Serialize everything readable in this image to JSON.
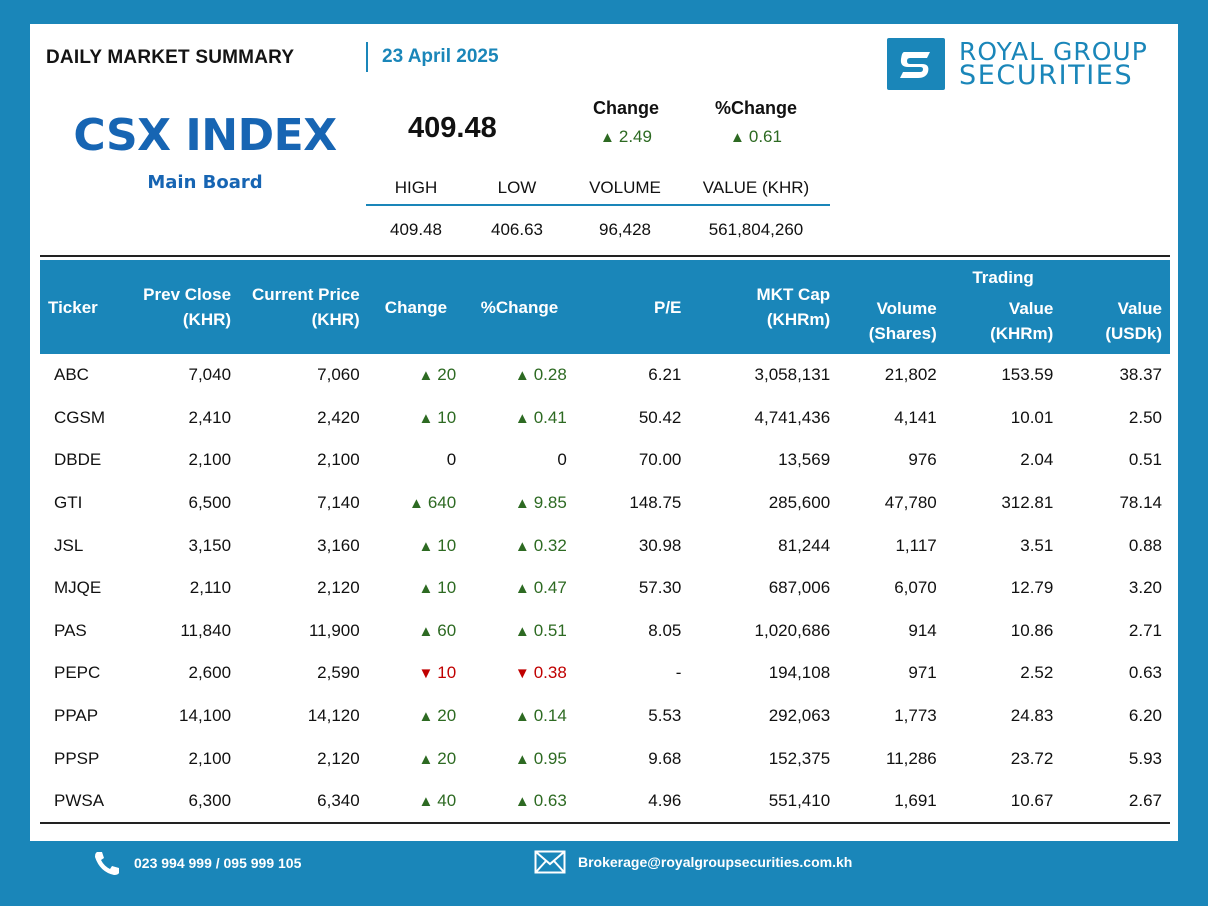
{
  "header": {
    "title": "DAILY MARKET SUMMARY",
    "date": "23 April 2025",
    "logo_line1": "ROYAL GROUP",
    "logo_line2": "SECURITIES"
  },
  "index": {
    "name": "CSX INDEX",
    "board": "Main Board",
    "value": "409.48",
    "change_label": "Change",
    "change_value": "2.49",
    "pct_change_label": "%Change",
    "pct_change_value": "0.61",
    "stats_labels": [
      "HIGH",
      "LOW",
      "VOLUME",
      "VALUE (KHR)"
    ],
    "stats_values": [
      "409.48",
      "406.63",
      "96,428",
      "561,804,260"
    ]
  },
  "table": {
    "headers": {
      "ticker": "Ticker",
      "prev_close": "Prev Close",
      "prev_close_unit": "(KHR)",
      "current_price": "Current Price",
      "current_price_unit": "(KHR)",
      "change": "Change",
      "pct_change": "%Change",
      "pe": "P/E",
      "mkt_cap": "MKT Cap",
      "mkt_cap_unit": "(KHRm)",
      "volume": "Volume",
      "volume_unit": "(Shares)",
      "trading": "Trading",
      "value_khr": "Value",
      "value_khr_unit": "(KHRm)",
      "value_usd": "Value",
      "value_usd_unit": "(USDk)"
    },
    "rows": [
      {
        "ticker": "ABC",
        "prev": "7,040",
        "curr": "7,060",
        "dir": "up",
        "chg": "20",
        "pct": "0.28",
        "pe": "6.21",
        "cap": "3,058,131",
        "vol": "21,802",
        "vkhr": "153.59",
        "vusd": "38.37"
      },
      {
        "ticker": "CGSM",
        "prev": "2,410",
        "curr": "2,420",
        "dir": "up",
        "chg": "10",
        "pct": "0.41",
        "pe": "50.42",
        "cap": "4,741,436",
        "vol": "4,141",
        "vkhr": "10.01",
        "vusd": "2.50"
      },
      {
        "ticker": "DBDE",
        "prev": "2,100",
        "curr": "2,100",
        "dir": "flat",
        "chg": "0",
        "pct": "0",
        "pe": "70.00",
        "cap": "13,569",
        "vol": "976",
        "vkhr": "2.04",
        "vusd": "0.51"
      },
      {
        "ticker": "GTI",
        "prev": "6,500",
        "curr": "7,140",
        "dir": "up",
        "chg": "640",
        "pct": "9.85",
        "pe": "148.75",
        "cap": "285,600",
        "vol": "47,780",
        "vkhr": "312.81",
        "vusd": "78.14"
      },
      {
        "ticker": "JSL",
        "prev": "3,150",
        "curr": "3,160",
        "dir": "up",
        "chg": "10",
        "pct": "0.32",
        "pe": "30.98",
        "cap": "81,244",
        "vol": "1,117",
        "vkhr": "3.51",
        "vusd": "0.88"
      },
      {
        "ticker": "MJQE",
        "prev": "2,110",
        "curr": "2,120",
        "dir": "up",
        "chg": "10",
        "pct": "0.47",
        "pe": "57.30",
        "cap": "687,006",
        "vol": "6,070",
        "vkhr": "12.79",
        "vusd": "3.20"
      },
      {
        "ticker": "PAS",
        "prev": "11,840",
        "curr": "11,900",
        "dir": "up",
        "chg": "60",
        "pct": "0.51",
        "pe": "8.05",
        "cap": "1,020,686",
        "vol": "914",
        "vkhr": "10.86",
        "vusd": "2.71"
      },
      {
        "ticker": "PEPC",
        "prev": "2,600",
        "curr": "2,590",
        "dir": "down",
        "chg": "10",
        "pct": "0.38",
        "pe": "-",
        "cap": "194,108",
        "vol": "971",
        "vkhr": "2.52",
        "vusd": "0.63"
      },
      {
        "ticker": "PPAP",
        "prev": "14,100",
        "curr": "14,120",
        "dir": "up",
        "chg": "20",
        "pct": "0.14",
        "pe": "5.53",
        "cap": "292,063",
        "vol": "1,773",
        "vkhr": "24.83",
        "vusd": "6.20"
      },
      {
        "ticker": "PPSP",
        "prev": "2,100",
        "curr": "2,120",
        "dir": "up",
        "chg": "20",
        "pct": "0.95",
        "pe": "9.68",
        "cap": "152,375",
        "vol": "11,286",
        "vkhr": "23.72",
        "vusd": "5.93"
      },
      {
        "ticker": "PWSA",
        "prev": "6,300",
        "curr": "6,340",
        "dir": "up",
        "chg": "40",
        "pct": "0.63",
        "pe": "4.96",
        "cap": "551,410",
        "vol": "1,691",
        "vkhr": "10.67",
        "vusd": "2.67"
      }
    ]
  },
  "footer": {
    "phone": "023 994 999 / 095 999 105",
    "email": "Brokerage@royalgroupsecurities.com.kh"
  },
  "colors": {
    "brand_blue": "#1a86b9",
    "index_blue": "#1765b3",
    "up_green": "#2d6a22",
    "down_red": "#c00000"
  }
}
